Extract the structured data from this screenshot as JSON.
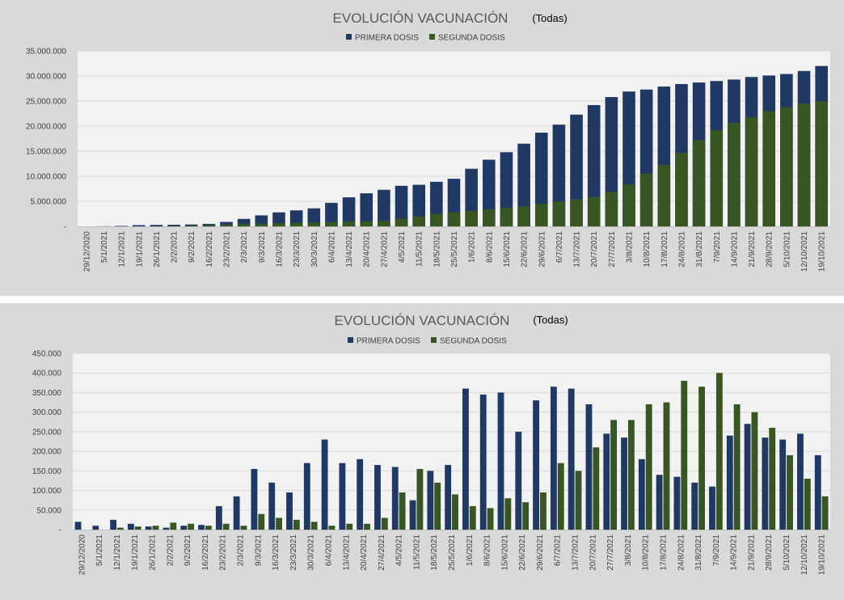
{
  "colors": {
    "primera": "#203864",
    "segunda": "#375623",
    "plot_bg": "#f2f2f2",
    "panel_bg": "#d9d9d9",
    "grid": "#d9d9d9"
  },
  "chart_data": [
    {
      "type": "bar",
      "title": "EVOLUCIÓN VACUNACIÓN",
      "filter_label": "(Todas)",
      "ylim": [
        0,
        35000000
      ],
      "yticks": [
        {
          "value": 0,
          "label": "-"
        },
        {
          "value": 5000000,
          "label": "5.000.000"
        },
        {
          "value": 10000000,
          "label": "10.000.000"
        },
        {
          "value": 15000000,
          "label": "15.000.000"
        },
        {
          "value": 20000000,
          "label": "20.000.000"
        },
        {
          "value": 25000000,
          "label": "25.000.000"
        },
        {
          "value": 30000000,
          "label": "30.000.000"
        },
        {
          "value": 35000000,
          "label": "35.000.000"
        }
      ],
      "x_tick_labels": [
        "29/12/2020",
        "5/1/2021",
        "12/1/2021",
        "19/1/2021",
        "26/1/2021",
        "2/2/2021",
        "9/2/2021",
        "16/2/2021",
        "23/2/2021",
        "2/3/2021",
        "9/3/2021",
        "16/3/2021",
        "23/3/2021",
        "30/3/2021",
        "6/4/2021",
        "13/4/2021",
        "20/4/2021",
        "27/4/2021",
        "4/5/2021",
        "11/5/2021",
        "18/5/2021",
        "25/5/2021",
        "1/6/2021",
        "8/6/2021",
        "15/6/2021",
        "22/6/2021",
        "29/6/2021",
        "6/7/2021",
        "13/7/2021",
        "20/7/2021",
        "27/7/2021",
        "3/8/2021",
        "10/8/2021",
        "17/8/2021",
        "24/8/2021",
        "31/8/2021",
        "7/9/2021",
        "14/9/2021",
        "21/9/2021",
        "28/9/2021",
        "5/10/2021",
        "12/10/2021",
        "19/10/2021"
      ],
      "series": [
        {
          "name": "PRIMERA DOSIS",
          "key": "primera",
          "values": [
            0,
            30000,
            100000,
            250000,
            300000,
            330000,
            380000,
            500000,
            900000,
            1500000,
            2200000,
            2800000,
            3200000,
            3600000,
            4700000,
            5800000,
            6600000,
            7300000,
            8100000,
            8300000,
            8900000,
            9500000,
            11500000,
            13300000,
            14800000,
            16500000,
            18700000,
            20300000,
            22300000,
            24200000,
            25800000,
            26900000,
            27300000,
            27900000,
            28400000,
            28700000,
            29000000,
            29300000,
            29800000,
            30100000,
            30400000,
            31000000,
            32000000
          ]
        },
        {
          "name": "SEGUNDA DOSIS",
          "key": "segunda",
          "values": [
            0,
            0,
            0,
            0,
            20000,
            80000,
            150000,
            280000,
            420000,
            500000,
            550000,
            650000,
            700000,
            800000,
            900000,
            1000000,
            1050000,
            1150000,
            1500000,
            2000000,
            2500000,
            2800000,
            3100000,
            3400000,
            3700000,
            4000000,
            4500000,
            5000000,
            5400000,
            5900000,
            6900000,
            8400000,
            10500000,
            12300000,
            14700000,
            17200000,
            19200000,
            20600000,
            21800000,
            23000000,
            23800000,
            24500000,
            25000000
          ]
        }
      ]
    },
    {
      "type": "bar",
      "title": "EVOLUCIÓN VACUNACIÓN",
      "filter_label": "(Todas)",
      "ylim": [
        0,
        450000
      ],
      "yticks": [
        {
          "value": 0,
          "label": "-"
        },
        {
          "value": 50000,
          "label": "50.000"
        },
        {
          "value": 100000,
          "label": "100.000"
        },
        {
          "value": 150000,
          "label": "150.000"
        },
        {
          "value": 200000,
          "label": "200.000"
        },
        {
          "value": 250000,
          "label": "250.000"
        },
        {
          "value": 300000,
          "label": "300.000"
        },
        {
          "value": 350000,
          "label": "350.000"
        },
        {
          "value": 400000,
          "label": "400.000"
        },
        {
          "value": 450000,
          "label": "450.000"
        }
      ],
      "x_tick_labels": [
        "29/12/2020",
        "5/1/2021",
        "12/1/2021",
        "19/1/2021",
        "26/1/2021",
        "2/2/2021",
        "9/2/2021",
        "16/2/2021",
        "23/2/2021",
        "2/3/2021",
        "9/3/2021",
        "16/3/2021",
        "23/3/2021",
        "30/3/2021",
        "6/4/2021",
        "13/4/2021",
        "20/4/2021",
        "27/4/2021",
        "4/5/2021",
        "11/5/2021",
        "18/5/2021",
        "25/5/2021",
        "1/6/2021",
        "8/6/2021",
        "15/6/2021",
        "22/6/2021",
        "29/6/2021",
        "6/7/2021",
        "13/7/2021",
        "20/7/2021",
        "27/7/2021",
        "3/8/2021",
        "10/8/2021",
        "17/8/2021",
        "24/8/2021",
        "31/8/2021",
        "7/9/2021",
        "14/9/2021",
        "21/9/2021",
        "28/9/2021",
        "5/10/2021",
        "12/10/2021",
        "19/10/2021"
      ],
      "series": [
        {
          "name": "PRIMERA DOSIS",
          "key": "primera",
          "values": [
            20000,
            10000,
            25000,
            15000,
            8000,
            5000,
            10000,
            12000,
            60000,
            85000,
            155000,
            120000,
            95000,
            170000,
            230000,
            170000,
            180000,
            165000,
            160000,
            75000,
            150000,
            165000,
            360000,
            345000,
            350000,
            250000,
            330000,
            365000,
            360000,
            320000,
            245000,
            235000,
            180000,
            140000,
            135000,
            120000,
            110000,
            240000,
            270000,
            235000,
            230000,
            245000,
            190000
          ]
        },
        {
          "name": "SEGUNDA DOSIS",
          "key": "segunda",
          "values": [
            0,
            0,
            5000,
            8000,
            10000,
            18000,
            15000,
            10000,
            15000,
            10000,
            40000,
            30000,
            25000,
            20000,
            10000,
            15000,
            15000,
            30000,
            95000,
            155000,
            120000,
            90000,
            60000,
            55000,
            80000,
            70000,
            95000,
            170000,
            150000,
            210000,
            280000,
            280000,
            320000,
            325000,
            380000,
            365000,
            400000,
            320000,
            300000,
            260000,
            190000,
            130000,
            85000
          ]
        }
      ]
    }
  ]
}
